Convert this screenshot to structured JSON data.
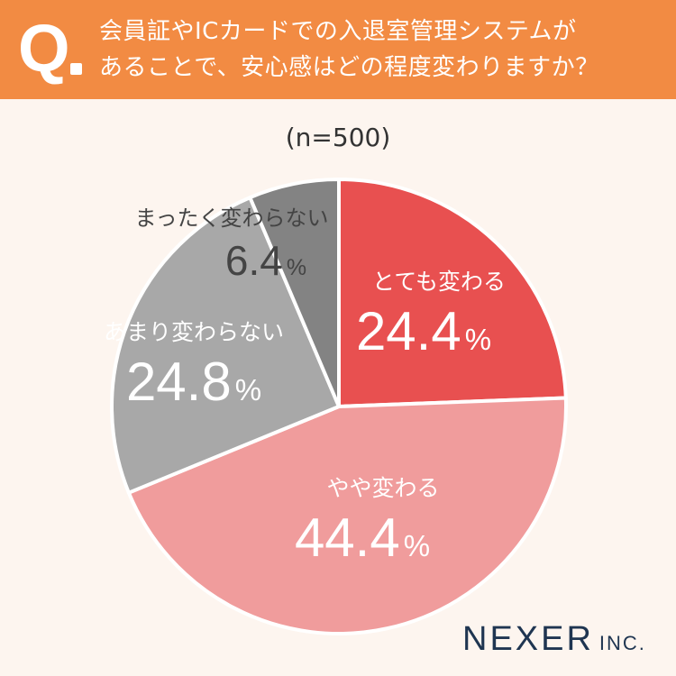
{
  "header": {
    "q_mark": "Q",
    "question_line1": "会員証やICカードでの入退室管理システムが",
    "question_line2": "あることで、安心感はどの程度変わりますか？"
  },
  "sample_size": "(n=500)",
  "brand": {
    "name": "NEXER",
    "suffix": "INC."
  },
  "colors": {
    "header_bg": "#f28b43",
    "page_bg": "#fdf5ef",
    "label_dark": "#444444",
    "label_light": "#ffffff"
  },
  "chart_data": {
    "type": "pie",
    "title": "",
    "unit": "%",
    "start": "12 o'clock",
    "direction": "clockwise",
    "slices": [
      {
        "label": "とても変わる",
        "value": 24.4,
        "value_text": "24.4",
        "color": "#e85050"
      },
      {
        "label": "やや変わる",
        "value": 44.4,
        "value_text": "44.4",
        "color": "#f09c9c"
      },
      {
        "label": "あまり変わらない",
        "value": 24.8,
        "value_text": "24.8",
        "color": "#a8a8a8"
      },
      {
        "label": "まったく変わらない",
        "value": 6.4,
        "value_text": "6.4",
        "color": "#838383"
      }
    ]
  }
}
